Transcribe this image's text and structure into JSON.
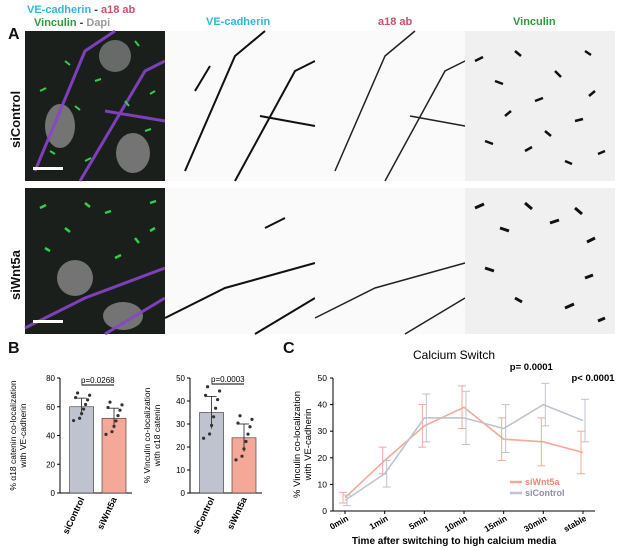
{
  "panels": {
    "a": "A",
    "b": "B",
    "c": "C"
  },
  "legend_top": {
    "vecad": "VE-cadherin",
    "dash1": " - ",
    "a18": "a18 ab",
    "vinculin": "Vinculin",
    "dash2": " - ",
    "dapi": "Dapi"
  },
  "columns": [
    "VE-cadherin",
    "a18 ab",
    "Vinculin"
  ],
  "rows": [
    "siControl",
    "siWnt5a"
  ],
  "colors": {
    "vecad": "#2fb7d6",
    "a18": "#c9506a",
    "vinculin": "#2e9c3a",
    "dapi": "#9a9a9a",
    "siWnt5a": "#f4a898",
    "siControl": "#bfc3cf"
  },
  "chart_data": [
    {
      "type": "bar",
      "categories": [
        "siControl",
        "siWnt5a"
      ],
      "values": [
        60,
        52
      ],
      "errors": [
        6,
        7
      ],
      "ylabel": "% α18 catenin co-localization with VE-cadherin",
      "ylim": [
        0,
        80
      ],
      "yticks": [
        "0",
        "20",
        "40",
        "60",
        "80"
      ],
      "pvalue": "p=0.0268"
    },
    {
      "type": "bar",
      "categories": [
        "siControl",
        "siWnt5a"
      ],
      "values": [
        35,
        24
      ],
      "errors": [
        7,
        6
      ],
      "ylabel": "% Vinculin co-localization with α18 catenin",
      "ylim": [
        0,
        50
      ],
      "yticks": [
        "0",
        "10",
        "20",
        "30",
        "40",
        "50"
      ],
      "pvalue": "p=0.0003"
    },
    {
      "type": "line",
      "title": "Calcium Switch",
      "categories": [
        "0min",
        "1min",
        "5min",
        "10min",
        "15min",
        "30min",
        "stable"
      ],
      "series": [
        {
          "name": "siWnt5a",
          "values": [
            5,
            19,
            32,
            39,
            27,
            26,
            22
          ],
          "errors": [
            2,
            5,
            8,
            8,
            8,
            9,
            8
          ]
        },
        {
          "name": "siControl",
          "values": [
            4,
            14,
            35,
            35,
            31,
            40,
            34
          ],
          "errors": [
            2,
            5,
            9,
            10,
            9,
            8,
            8
          ]
        }
      ],
      "xlabel": "Time after switching to high calcium media",
      "ylabel": "% Vinculin co-localization with VE-cadherin",
      "ylim": [
        0,
        50
      ],
      "yticks": [
        "0",
        "10",
        "20",
        "30",
        "40",
        "50"
      ],
      "annotations": [
        "p= 0.0001",
        "p< 0.0001"
      ]
    }
  ]
}
